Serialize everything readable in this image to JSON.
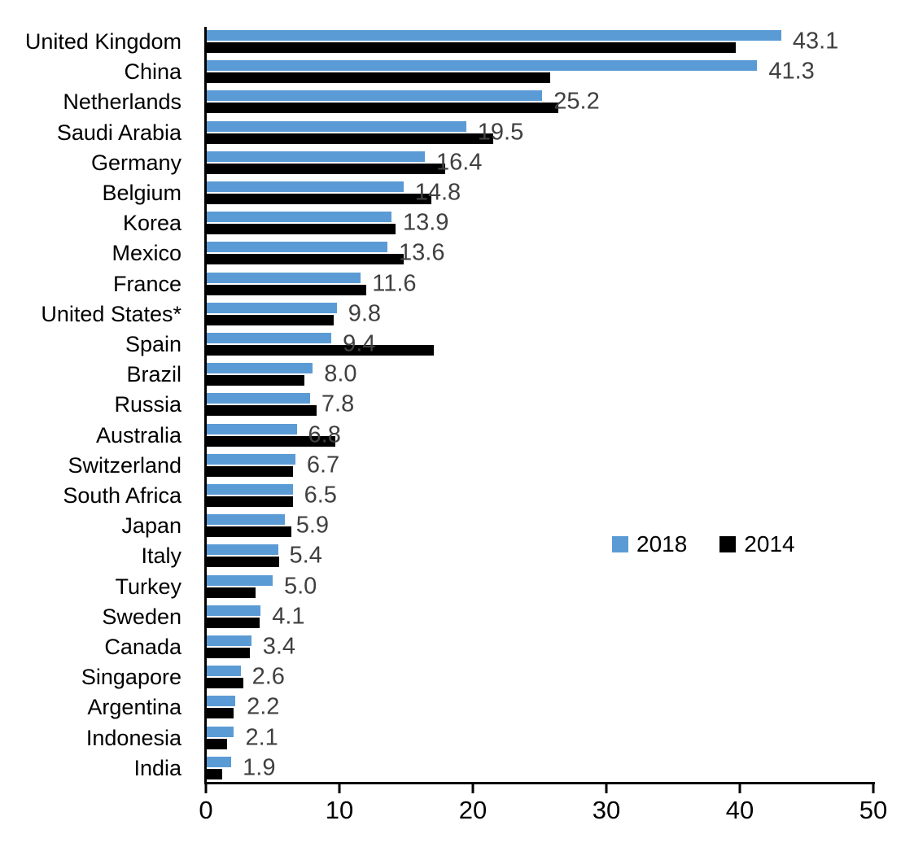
{
  "chart_data": {
    "type": "bar",
    "orientation": "horizontal",
    "title": "",
    "xlabel": "",
    "ylabel": "",
    "xlim": [
      0,
      50
    ],
    "x_ticks": [
      "0",
      "10",
      "20",
      "30",
      "40",
      "50"
    ],
    "grid": false,
    "legend_position": "middle-right",
    "categories": [
      "United Kingdom",
      "China",
      "Netherlands",
      "Saudi Arabia",
      "Germany",
      "Belgium",
      "Korea",
      "Mexico",
      "France",
      "United States*",
      "Spain",
      "Brazil",
      "Russia",
      "Australia",
      "Switzerland",
      "South Africa",
      "Japan",
      "Italy",
      "Turkey",
      "Sweden",
      "Canada",
      "Singapore",
      "Argentina",
      "Indonesia",
      "India"
    ],
    "series": [
      {
        "name": "2018",
        "color": "#5B9BD5",
        "values": [
          43.1,
          41.3,
          25.2,
          19.5,
          16.4,
          14.8,
          13.9,
          13.6,
          11.6,
          9.8,
          9.4,
          8.0,
          7.8,
          6.8,
          6.7,
          6.5,
          5.9,
          5.4,
          5.0,
          4.1,
          3.4,
          2.6,
          2.2,
          2.1,
          1.9
        ]
      },
      {
        "name": "2014",
        "color": "#000000",
        "values": [
          39.7,
          25.8,
          26.4,
          21.5,
          17.9,
          16.9,
          14.2,
          14.8,
          12.0,
          9.6,
          17.1,
          7.4,
          8.3,
          9.7,
          6.5,
          6.5,
          6.4,
          5.5,
          3.7,
          4.0,
          3.3,
          2.8,
          2.1,
          1.6,
          1.2
        ]
      }
    ],
    "data_labels": [
      "43.1",
      "41.3",
      "25.2",
      "19.5",
      "16.4",
      "14.8",
      "13.9",
      "13.6",
      "11.6",
      "9.8",
      "9.4",
      "8.0",
      "7.8",
      "6.8",
      "6.7",
      "6.5",
      "5.9",
      "5.4",
      "5.0",
      "4.1",
      "3.4",
      "2.6",
      "2.2",
      "2.1",
      "1.9"
    ],
    "data_labels_series": "2018",
    "data_label_color": "#404040"
  },
  "layout_colors": {
    "axis": "#000000",
    "background": "#ffffff"
  }
}
